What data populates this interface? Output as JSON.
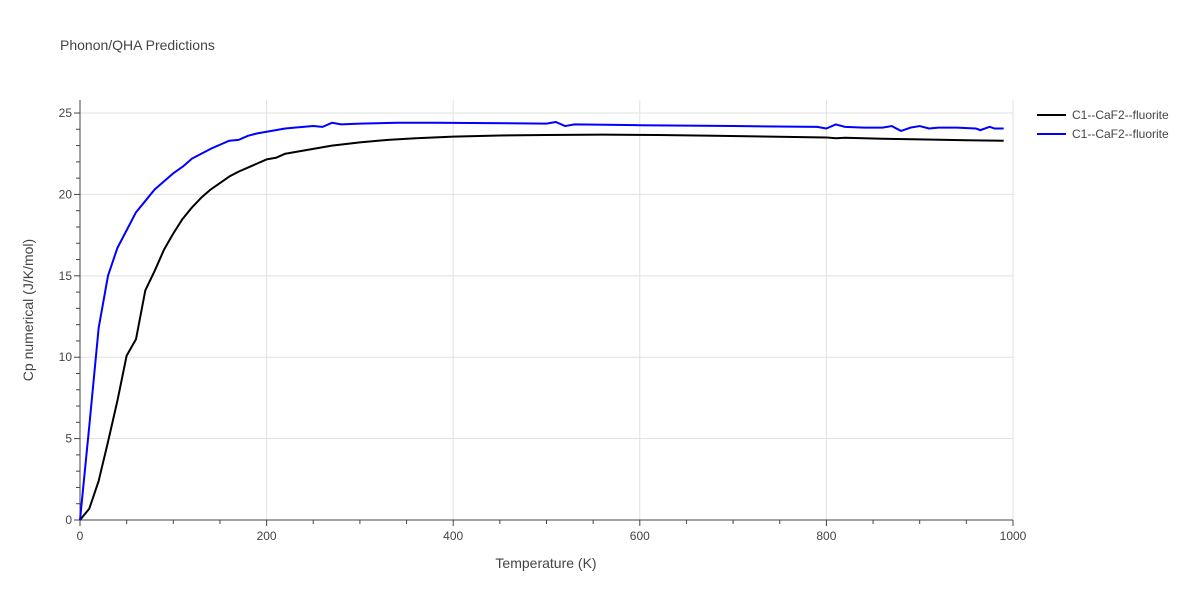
{
  "chart_data": {
    "type": "line",
    "title": "Phonon/QHA Predictions",
    "xlabel": "Temperature (K)",
    "ylabel": "Cp numerical (J/K/mol)",
    "xlim": [
      0,
      1000
    ],
    "ylim": [
      0,
      25.8
    ],
    "xticks": [
      0,
      200,
      400,
      600,
      800,
      1000
    ],
    "yticks": [
      0,
      5,
      10,
      15,
      20,
      25
    ],
    "grid": true,
    "legend_position": "top-right",
    "series": [
      {
        "name": "C1--CaF2--fluorite",
        "color": "#000000",
        "x": [
          0,
          10,
          20,
          30,
          40,
          50,
          60,
          70,
          80,
          90,
          100,
          110,
          120,
          130,
          140,
          150,
          160,
          170,
          180,
          190,
          200,
          210,
          220,
          240,
          270,
          300,
          330,
          360,
          400,
          450,
          500,
          560,
          620,
          680,
          740,
          800,
          810,
          820,
          860,
          900,
          950,
          990
        ],
        "y": [
          0,
          0.7,
          2.4,
          4.8,
          7.3,
          10.1,
          11.1,
          14.1,
          15.3,
          16.6,
          17.6,
          18.5,
          19.2,
          19.8,
          20.3,
          20.7,
          21.1,
          21.4,
          21.65,
          21.9,
          22.15,
          22.25,
          22.5,
          22.7,
          23.0,
          23.2,
          23.35,
          23.45,
          23.55,
          23.62,
          23.65,
          23.67,
          23.65,
          23.6,
          23.55,
          23.5,
          23.45,
          23.48,
          23.42,
          23.38,
          23.33,
          23.3
        ]
      },
      {
        "name": "C1--CaF2--fluorite",
        "color": "#0000ff",
        "x": [
          0,
          10,
          20,
          30,
          40,
          50,
          60,
          70,
          80,
          90,
          100,
          110,
          120,
          130,
          140,
          150,
          160,
          170,
          180,
          190,
          200,
          210,
          220,
          230,
          250,
          260,
          270,
          280,
          300,
          340,
          380,
          440,
          500,
          510,
          520,
          530,
          600,
          700,
          790,
          800,
          810,
          820,
          840,
          860,
          870,
          880,
          890,
          900,
          910,
          920,
          940,
          960,
          965,
          975,
          980,
          990
        ],
        "y": [
          0,
          5.8,
          11.8,
          15.0,
          16.7,
          17.8,
          18.9,
          19.6,
          20.3,
          20.8,
          21.3,
          21.7,
          22.2,
          22.5,
          22.8,
          23.05,
          23.3,
          23.35,
          23.6,
          23.75,
          23.85,
          23.95,
          24.05,
          24.1,
          24.2,
          24.15,
          24.4,
          24.3,
          24.35,
          24.4,
          24.4,
          24.38,
          24.35,
          24.45,
          24.2,
          24.3,
          24.25,
          24.2,
          24.15,
          24.05,
          24.3,
          24.15,
          24.1,
          24.1,
          24.2,
          23.9,
          24.1,
          24.2,
          24.05,
          24.1,
          24.1,
          24.05,
          23.95,
          24.15,
          24.05,
          24.05
        ]
      }
    ]
  }
}
